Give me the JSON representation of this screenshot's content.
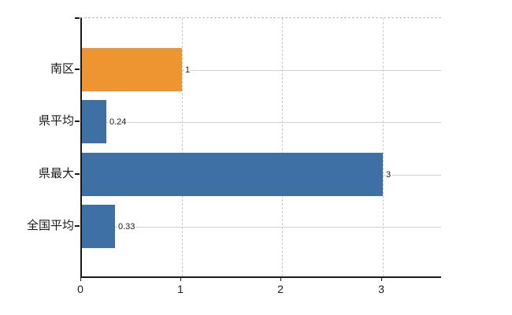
{
  "chart_data": {
    "type": "bar",
    "orientation": "horizontal",
    "title": "",
    "xlabel": "",
    "ylabel": "",
    "categories": [
      "南区",
      "県平均",
      "県最大",
      "全国平均"
    ],
    "values": [
      1,
      0.24,
      3,
      0.33
    ],
    "value_labels": [
      "1",
      "0.24",
      "3",
      "0.33"
    ],
    "bar_colors": [
      "#ee9531",
      "#3e70a6",
      "#3e70a6",
      "#3e70a6"
    ],
    "x_ticks": [
      0,
      1,
      2,
      3
    ],
    "x_tick_labels": [
      "0",
      "1",
      "2",
      "3"
    ],
    "xlim": [
      0,
      3.6
    ],
    "legend_position": "none",
    "grid": {
      "vertical_lines": "dashed",
      "horizontal_category_lines": "solid"
    },
    "colors": {
      "highlight_bar": "#ee9531",
      "default_bar": "#3e70a6",
      "vertical_grid": "#c9c9c9",
      "category_grid": "#ccd3ca",
      "axis": "#1a1a1a",
      "text": "#1a1a1a",
      "background": "#ffffff"
    }
  }
}
